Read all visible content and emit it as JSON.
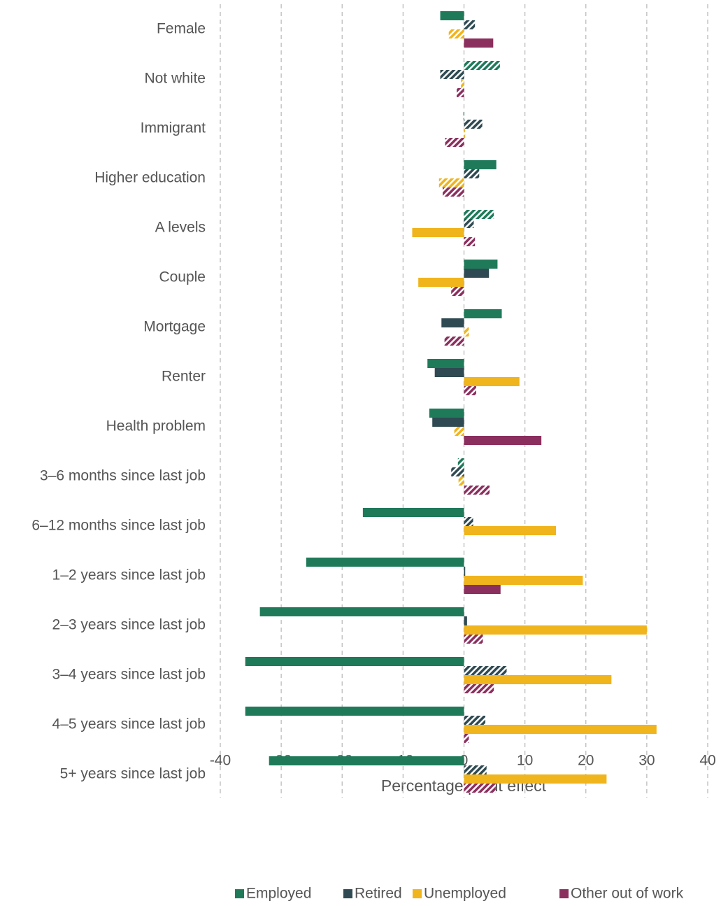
{
  "chart_data": {
    "type": "hbar",
    "x_label": "Percentage point effect",
    "categories": [
      "Female",
      "Not white",
      "Immigrant",
      "Higher education",
      "A levels",
      "Couple",
      "Mortgage",
      "Renter",
      "Health problem",
      "3–6 months since last job",
      "6–12 months since last job",
      "1–2 years since last job",
      "2–3 years since last job",
      "3–4 years since last job",
      "4–5 years since last job",
      "5+ years since last job"
    ],
    "series": [
      {
        "name": "Employed",
        "color": "#1f7a5a",
        "values": [
          -3.9,
          5.9,
          -0.1,
          5.3,
          4.9,
          5.5,
          6.2,
          -6.0,
          -5.7,
          -1.0,
          -16.6,
          -25.9,
          -33.5,
          -35.9,
          -35.9,
          -32.0
        ],
        "hatched": [
          false,
          true,
          true,
          false,
          true,
          false,
          false,
          false,
          false,
          true,
          false,
          false,
          false,
          false,
          false,
          false
        ]
      },
      {
        "name": "Retired",
        "color": "#2f4a52",
        "values": [
          1.8,
          -3.9,
          3.0,
          2.5,
          1.6,
          4.1,
          -3.7,
          -4.8,
          -5.2,
          -2.1,
          1.5,
          0.2,
          0.5,
          7.0,
          3.5,
          3.7
        ],
        "hatched": [
          true,
          true,
          true,
          true,
          true,
          false,
          false,
          false,
          false,
          true,
          true,
          false,
          false,
          true,
          true,
          true
        ]
      },
      {
        "name": "Unemployed",
        "color": "#f0b41c",
        "values": [
          -2.5,
          -0.5,
          0.2,
          -4.1,
          -8.5,
          -7.5,
          0.8,
          9.1,
          -1.6,
          -0.9,
          15.1,
          19.5,
          30.0,
          24.2,
          31.6,
          23.4
        ],
        "hatched": [
          true,
          true,
          true,
          true,
          false,
          false,
          true,
          false,
          true,
          true,
          false,
          false,
          false,
          false,
          false,
          false
        ]
      },
      {
        "name": "Other out of work",
        "color": "#8b2f5e",
        "values": [
          4.8,
          -1.2,
          -3.1,
          -3.5,
          1.8,
          -2.1,
          -3.2,
          2.0,
          12.7,
          4.2,
          0,
          6.0,
          3.1,
          4.9,
          0.8,
          5.2
        ],
        "hatched": [
          false,
          true,
          true,
          true,
          true,
          true,
          true,
          true,
          false,
          true,
          false,
          false,
          true,
          true,
          true,
          true
        ]
      }
    ],
    "xlim": [
      -40,
      40
    ],
    "xticks": [
      -40,
      -30,
      -20,
      -10,
      0,
      10,
      20,
      30,
      40
    ],
    "grid": true
  }
}
